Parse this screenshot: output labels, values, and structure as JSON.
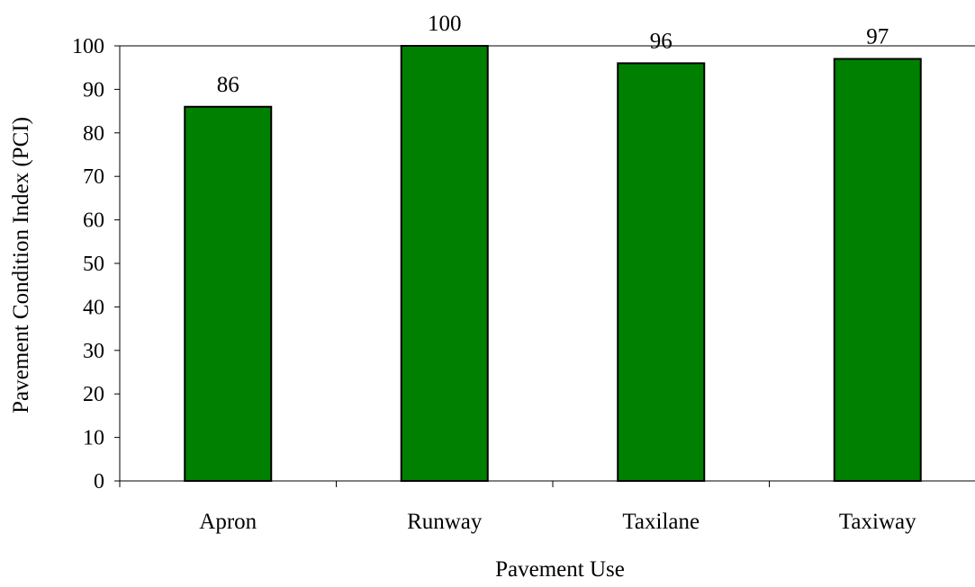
{
  "chart_data": {
    "type": "bar",
    "title": "",
    "xlabel": "Pavement Use",
    "ylabel": "Pavement Condition Index (PCI)",
    "categories": [
      "Apron",
      "Runway",
      "Taxilane",
      "Taxiway"
    ],
    "values": [
      86,
      100,
      96,
      97
    ],
    "data_labels": [
      "86",
      "100",
      "96",
      "97"
    ],
    "ylim": [
      0,
      100
    ],
    "yticks": [
      0,
      10,
      20,
      30,
      40,
      50,
      60,
      70,
      80,
      90,
      100
    ],
    "grid": false,
    "legend": "none",
    "colors": {
      "bar_fill": "#008000",
      "bar_stroke": "#000000",
      "axis": "#000000",
      "background": "#ffffff"
    }
  }
}
